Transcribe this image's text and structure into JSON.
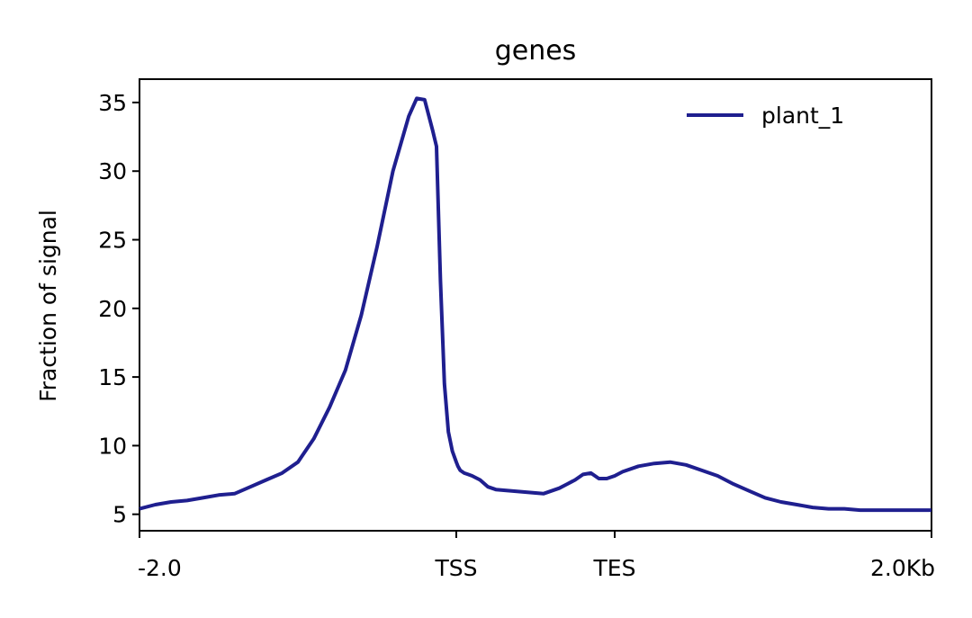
{
  "chart_data": {
    "type": "line",
    "title": "genes",
    "xlabel": "",
    "ylabel": "Fraction of signal",
    "x_ticks": [
      {
        "pos": 0,
        "label": "-2.0"
      },
      {
        "pos": 0.4,
        "label": "TSS"
      },
      {
        "pos": 0.6,
        "label": "TES"
      },
      {
        "pos": 1.0,
        "label": "2.0Kb"
      }
    ],
    "y_ticks": [
      5,
      10,
      15,
      20,
      25,
      30,
      35
    ],
    "ylim": [
      3.8,
      36.7
    ],
    "xlim": [
      0,
      1
    ],
    "legend_position": "top-right",
    "grid": false,
    "series": [
      {
        "name": "plant_1",
        "color": "#1f1f8f",
        "x": [
          0.0,
          0.02,
          0.04,
          0.06,
          0.08,
          0.1,
          0.12,
          0.14,
          0.16,
          0.18,
          0.2,
          0.22,
          0.24,
          0.26,
          0.28,
          0.3,
          0.32,
          0.34,
          0.35,
          0.36,
          0.37,
          0.375,
          0.38,
          0.385,
          0.39,
          0.395,
          0.4,
          0.402,
          0.405,
          0.41,
          0.415,
          0.42,
          0.43,
          0.44,
          0.45,
          0.47,
          0.49,
          0.51,
          0.53,
          0.54,
          0.55,
          0.56,
          0.57,
          0.58,
          0.59,
          0.6,
          0.61,
          0.63,
          0.65,
          0.67,
          0.69,
          0.71,
          0.73,
          0.75,
          0.77,
          0.79,
          0.81,
          0.83,
          0.85,
          0.87,
          0.89,
          0.91,
          0.93,
          0.95,
          0.97,
          1.0
        ],
        "values": [
          5.4,
          5.7,
          5.9,
          6.0,
          6.2,
          6.4,
          6.5,
          7.0,
          7.5,
          8.0,
          8.8,
          10.5,
          12.8,
          15.5,
          19.5,
          24.5,
          30.0,
          34.0,
          35.3,
          35.2,
          33.0,
          31.8,
          22.0,
          14.5,
          11.0,
          9.6,
          8.8,
          8.5,
          8.2,
          8.0,
          7.9,
          7.8,
          7.5,
          7.0,
          6.8,
          6.7,
          6.6,
          6.5,
          6.9,
          7.2,
          7.5,
          7.9,
          8.0,
          7.6,
          7.6,
          7.8,
          8.1,
          8.5,
          8.7,
          8.8,
          8.6,
          8.2,
          7.8,
          7.2,
          6.7,
          6.2,
          5.9,
          5.7,
          5.5,
          5.4,
          5.4,
          5.3,
          5.3,
          5.3,
          5.3,
          5.3
        ]
      }
    ]
  }
}
